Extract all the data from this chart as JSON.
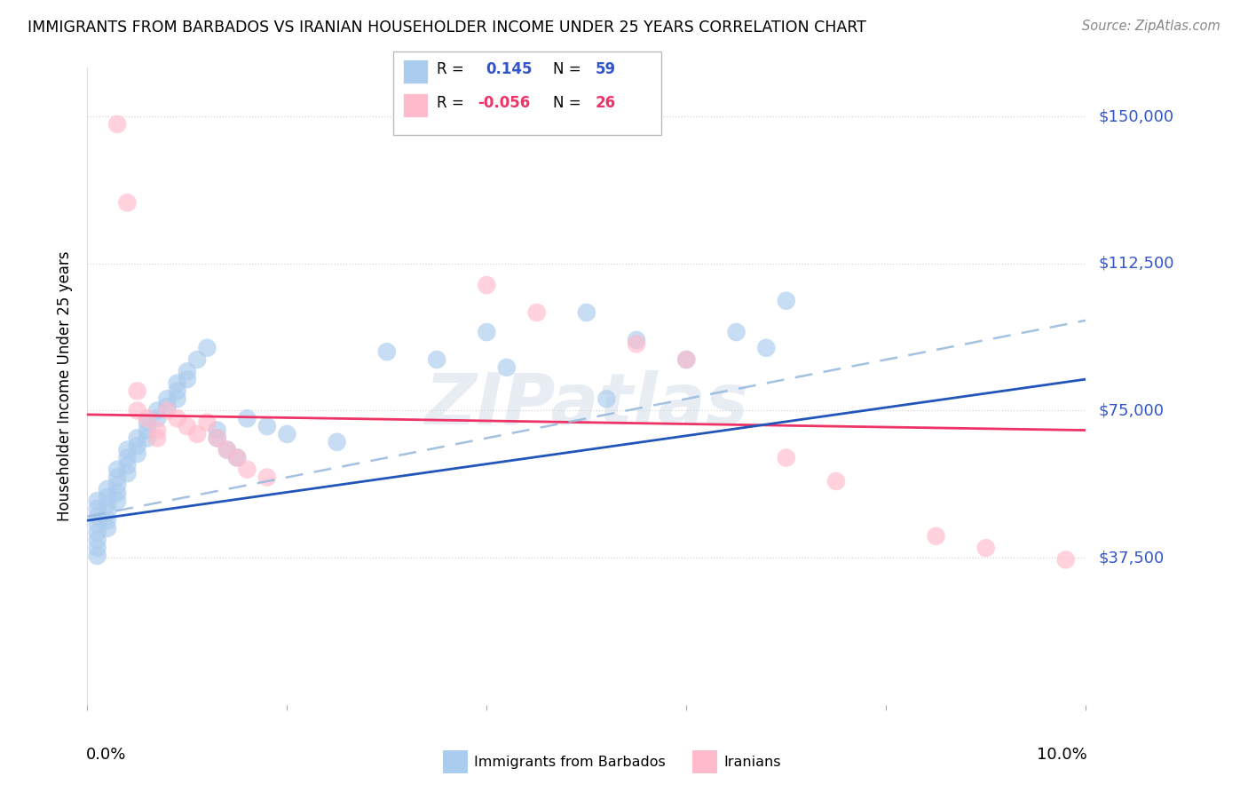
{
  "title": "IMMIGRANTS FROM BARBADOS VS IRANIAN HOUSEHOLDER INCOME UNDER 25 YEARS CORRELATION CHART",
  "source": "Source: ZipAtlas.com",
  "ylabel": "Householder Income Under 25 years",
  "xlim": [
    0.0,
    0.1
  ],
  "ylim": [
    0,
    162500
  ],
  "yticks": [
    0,
    37500,
    75000,
    112500,
    150000
  ],
  "ytick_labels": [
    "",
    "$37,500",
    "$75,000",
    "$112,500",
    "$150,000"
  ],
  "grid_color": "#cccccc",
  "barbados_color": "#aaccee",
  "iranian_color": "#ffbbcc",
  "barbados_line_color": "#2255bb",
  "iranian_line_color": "#ee3366",
  "trend_dash_color": "#99bbdd",
  "barbados_x": [
    0.001,
    0.001,
    0.001,
    0.001,
    0.001,
    0.001,
    0.001,
    0.001,
    0.002,
    0.002,
    0.002,
    0.002,
    0.002,
    0.002,
    0.003,
    0.003,
    0.003,
    0.003,
    0.003,
    0.004,
    0.004,
    0.004,
    0.004,
    0.005,
    0.005,
    0.005,
    0.006,
    0.006,
    0.006,
    0.007,
    0.007,
    0.008,
    0.008,
    0.009,
    0.009,
    0.009,
    0.01,
    0.01,
    0.011,
    0.012,
    0.013,
    0.013,
    0.014,
    0.015,
    0.016,
    0.018,
    0.02,
    0.025,
    0.03,
    0.035,
    0.04,
    0.042,
    0.05,
    0.052,
    0.055,
    0.06,
    0.065,
    0.068,
    0.07
  ],
  "barbados_y": [
    52000,
    50000,
    48000,
    46000,
    44000,
    42000,
    40000,
    38000,
    55000,
    53000,
    51000,
    49000,
    47000,
    45000,
    60000,
    58000,
    56000,
    54000,
    52000,
    65000,
    63000,
    61000,
    59000,
    68000,
    66000,
    64000,
    72000,
    70000,
    68000,
    75000,
    73000,
    78000,
    76000,
    82000,
    80000,
    78000,
    85000,
    83000,
    88000,
    91000,
    70000,
    68000,
    65000,
    63000,
    73000,
    71000,
    69000,
    67000,
    90000,
    88000,
    95000,
    86000,
    100000,
    78000,
    93000,
    88000,
    95000,
    91000,
    103000
  ],
  "iranian_x": [
    0.003,
    0.004,
    0.005,
    0.005,
    0.006,
    0.007,
    0.007,
    0.008,
    0.009,
    0.01,
    0.011,
    0.012,
    0.013,
    0.014,
    0.015,
    0.016,
    0.018,
    0.04,
    0.045,
    0.055,
    0.06,
    0.07,
    0.075,
    0.085,
    0.09,
    0.098
  ],
  "iranian_y": [
    148000,
    128000,
    80000,
    75000,
    73000,
    70000,
    68000,
    75000,
    73000,
    71000,
    69000,
    72000,
    68000,
    65000,
    63000,
    60000,
    58000,
    107000,
    100000,
    92000,
    88000,
    63000,
    57000,
    43000,
    40000,
    37000
  ],
  "barbados_line_y0": 47000,
  "barbados_line_y1": 83000,
  "iranian_line_y0": 74000,
  "iranian_line_y1": 70000,
  "dash_line_y0": 48000,
  "dash_line_y1": 98000
}
